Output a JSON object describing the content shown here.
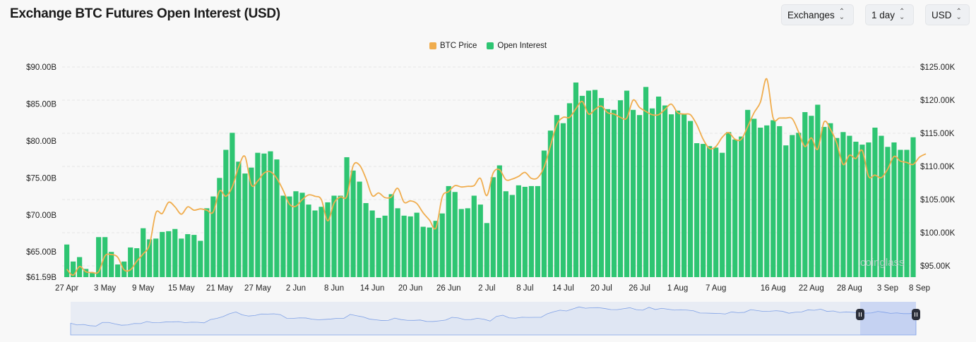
{
  "header": {
    "title": "Exchange BTC Futures Open Interest (USD)"
  },
  "controls": [
    {
      "label": "Exchanges",
      "icon": "chevron-up-down-icon"
    },
    {
      "label": "1 day",
      "icon": "chevron-up-down-icon"
    },
    {
      "label": "USD",
      "icon": "chevron-up-down-icon"
    }
  ],
  "watermark": "coinglass",
  "chart_data": {
    "type": "bar+line",
    "title": "Exchange BTC Futures Open Interest (USD)",
    "legend": {
      "placement": "top-center",
      "items": [
        {
          "name": "BTC Price",
          "color": "#f0ad4e"
        },
        {
          "name": "Open Interest",
          "color": "#2ec572"
        }
      ]
    },
    "x_ticks": [
      "27 Apr",
      "3 May",
      "9 May",
      "15 May",
      "21 May",
      "27 May",
      "2 Jun",
      "8 Jun",
      "14 Jun",
      "20 Jun",
      "26 Jun",
      "2 Jul",
      "8 Jul",
      "14 Jul",
      "20 Jul",
      "26 Jul",
      "1 Aug",
      "7 Aug",
      "16 Aug",
      "22 Aug",
      "28 Aug",
      "3 Sep",
      "8 Sep"
    ],
    "left_axis": {
      "ticks": [
        "$61.59B",
        "$65.00B",
        "$70.00B",
        "$75.00B",
        "$80.00B",
        "$85.00B",
        "$90.00B"
      ],
      "tick_values": [
        61.59,
        65,
        70,
        75,
        80,
        85,
        90
      ],
      "range": [
        61.59,
        90
      ],
      "unit": "B USD"
    },
    "right_axis": {
      "ticks": [
        "$95.00K",
        "$100.00K",
        "$105.00K",
        "$110.00K",
        "$115.00K",
        "$120.00K",
        "$125.00K"
      ],
      "tick_values": [
        95,
        100,
        105,
        110,
        115,
        120,
        125
      ],
      "range": [
        93.3,
        125
      ],
      "unit": "K USD"
    },
    "grid": true,
    "series": [
      {
        "name": "Open Interest",
        "axis": "left",
        "type": "bar",
        "color": "#2ec572",
        "values": [
          66.0,
          63.7,
          64.3,
          62.7,
          62.2,
          67.0,
          67.0,
          65.0,
          63.3,
          63.7,
          65.6,
          65.5,
          68.2,
          66.7,
          66.8,
          67.7,
          67.8,
          68.1,
          66.8,
          67.4,
          67.3,
          66.5,
          70.9,
          72.5,
          75.0,
          78.8,
          81.1,
          77.2,
          75.6,
          76.4,
          78.4,
          78.3,
          78.6,
          77.5,
          72.6,
          72.5,
          73.2,
          73.0,
          71.4,
          70.6,
          71.1,
          71.7,
          72.6,
          72.6,
          77.8,
          76.0,
          74.5,
          71.6,
          70.6,
          69.6,
          69.9,
          72.8,
          70.9,
          69.9,
          69.8,
          70.3,
          68.4,
          68.3,
          69.2,
          70.2,
          73.9,
          73.1,
          70.8,
          70.9,
          72.6,
          71.4,
          68.9,
          75.1,
          76.7,
          73.2,
          72.7,
          74.0,
          73.8,
          73.9,
          73.9,
          78.7,
          81.4,
          83.5,
          82.4,
          85.1,
          87.9,
          86.1,
          86.8,
          86.9,
          85.8,
          84.3,
          84.2,
          85.5,
          86.8,
          84.2,
          83.5,
          87.3,
          84.4,
          86.0,
          84.8,
          83.6,
          84.1,
          83.6,
          82.7,
          79.7,
          79.6,
          79.3,
          79.1,
          78.4,
          81.2,
          80.2,
          80.6,
          84.2,
          83.0,
          81.8,
          82.1,
          82.8,
          82.0,
          79.4,
          80.8,
          81.1,
          83.9,
          83.4,
          84.9,
          81.9,
          82.4,
          80.4,
          81.2,
          80.7,
          79.9,
          79.5,
          79.8,
          81.8,
          80.7,
          79.2,
          79.8,
          78.8,
          78.8,
          80.5
        ]
      },
      {
        "name": "BTC Price",
        "axis": "right",
        "type": "line",
        "color": "#f0ad4e",
        "values": [
          94.5,
          93.6,
          94.9,
          94.1,
          94.0,
          94.1,
          96.5,
          96.7,
          96.3,
          94.4,
          94.4,
          95.7,
          96.8,
          98.2,
          103.0,
          102.9,
          104.6,
          103.9,
          102.8,
          103.9,
          103.4,
          103.6,
          103.4,
          103.1,
          106.3,
          105.5,
          106.9,
          109.9,
          111.5,
          107.2,
          107.8,
          109.0,
          109.2,
          108.2,
          106.4,
          104.3,
          104.0,
          105.0,
          105.7,
          105.5,
          105.0,
          101.8,
          104.5,
          105.4,
          105.5,
          110.1,
          110.2,
          108.2,
          105.6,
          106.0,
          105.3,
          105.4,
          106.7,
          104.6,
          104.8,
          104.4,
          103.0,
          101.9,
          100.7,
          105.4,
          106.2,
          107.1,
          106.9,
          107.0,
          107.1,
          108.2,
          105.6,
          109.0,
          109.5,
          108.0,
          108.1,
          108.5,
          109.1,
          108.2,
          108.3,
          109.9,
          113.1,
          116.3,
          117.4,
          117.4,
          118.7,
          119.8,
          117.9,
          118.6,
          119.1,
          118.1,
          117.9,
          117.4,
          117.3,
          120.0,
          118.9,
          118.3,
          117.8,
          117.8,
          118.6,
          119.4,
          118.1,
          117.9,
          117.8,
          116.3,
          114.1,
          112.7,
          113.0,
          114.4,
          115.1,
          114.1,
          114.1,
          116.0,
          118.1,
          119.7,
          123.2,
          117.3,
          117.3,
          117.3,
          117.2,
          115.2,
          113.0,
          114.3,
          112.6,
          116.7,
          115.6,
          113.5,
          110.3,
          111.7,
          111.2,
          112.4,
          108.5,
          108.7,
          108.3,
          109.6,
          111.5,
          110.8,
          110.6,
          110.3,
          111.4,
          111.9
        ]
      }
    ],
    "navigator": {
      "selected_range": [
        "3 Sep",
        "8 Sep"
      ]
    }
  }
}
